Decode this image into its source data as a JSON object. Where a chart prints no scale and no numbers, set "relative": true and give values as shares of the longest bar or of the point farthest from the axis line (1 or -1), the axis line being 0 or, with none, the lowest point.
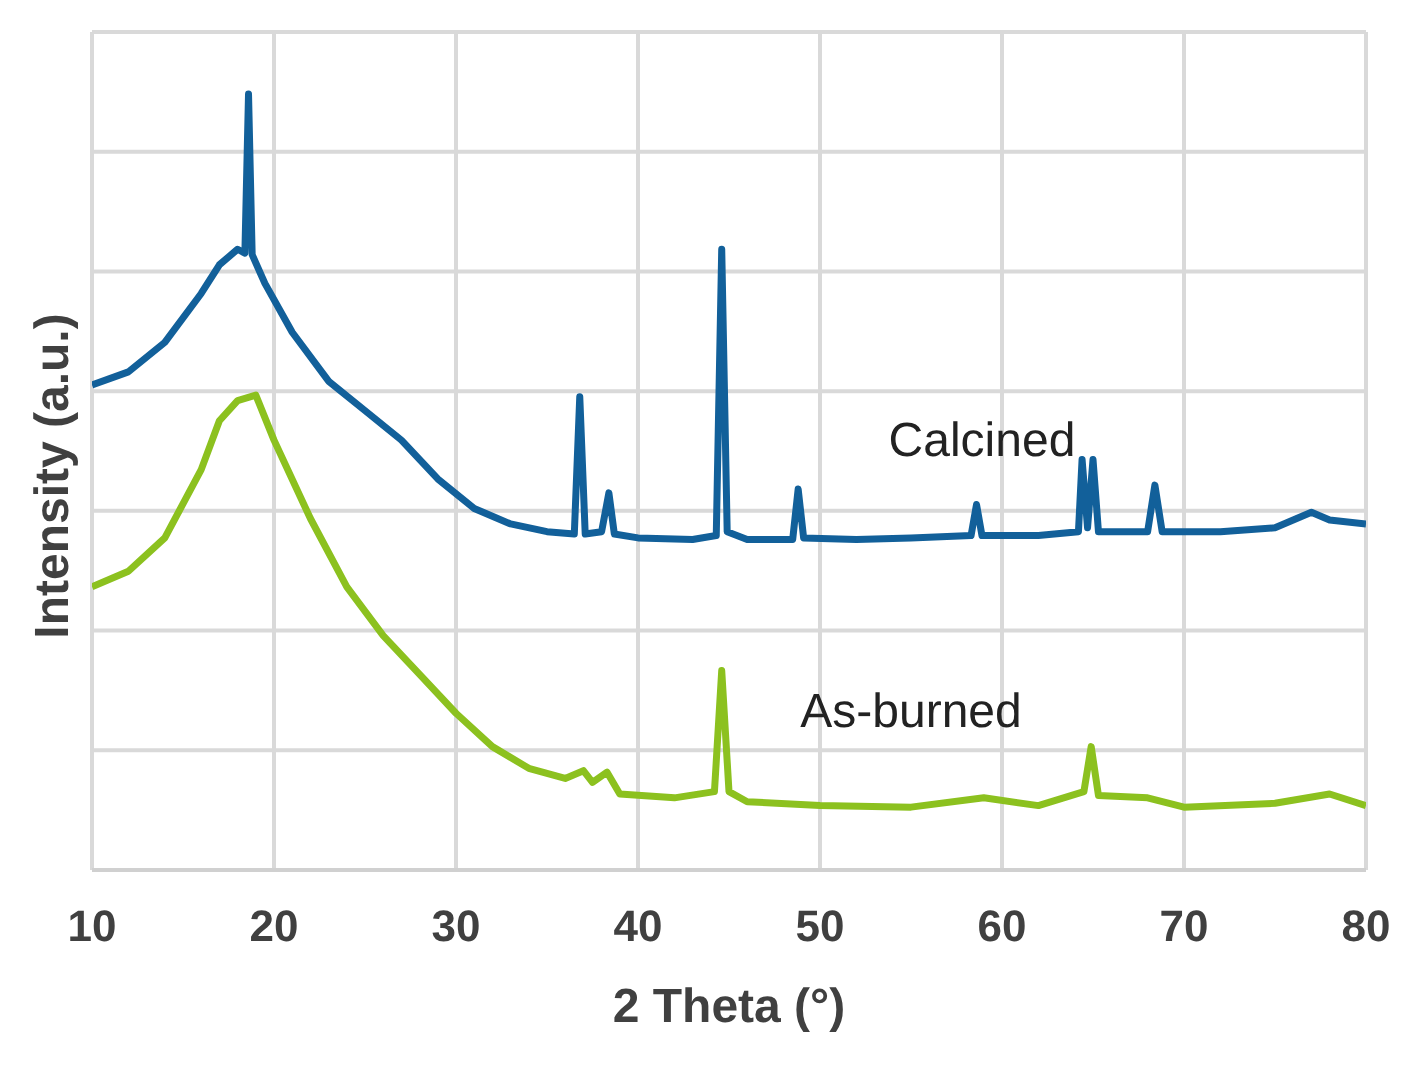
{
  "chart_data": {
    "type": "line",
    "xlabel": "2 Theta (°)",
    "ylabel": "Intensity (a.u.)",
    "xlim": [
      10,
      80
    ],
    "xticks": [
      10,
      20,
      30,
      40,
      50,
      60,
      70,
      80
    ],
    "relative": true,
    "grid": true,
    "series": [
      {
        "name": "Calcined",
        "color": "#12609a",
        "x": [
          10,
          12,
          14,
          16,
          17,
          18,
          18.4,
          18.6,
          18.8,
          19.5,
          21,
          23,
          25,
          27,
          29,
          31,
          33,
          35,
          36.5,
          36.8,
          37.1,
          38,
          38.4,
          38.7,
          40,
          43,
          44.3,
          44.6,
          44.9,
          46,
          48.5,
          48.8,
          49.1,
          52,
          55,
          58.3,
          58.6,
          58.9,
          62,
          64.2,
          64.4,
          64.7,
          65.0,
          65.3,
          68.0,
          68.4,
          68.8,
          72,
          75,
          77,
          78,
          80
        ],
        "values": [
          0.625,
          0.642,
          0.68,
          0.743,
          0.78,
          0.8,
          0.795,
          1.0,
          0.793,
          0.756,
          0.693,
          0.63,
          0.592,
          0.554,
          0.504,
          0.466,
          0.446,
          0.436,
          0.433,
          0.61,
          0.433,
          0.436,
          0.486,
          0.433,
          0.428,
          0.426,
          0.431,
          0.8,
          0.436,
          0.426,
          0.426,
          0.491,
          0.428,
          0.426,
          0.428,
          0.431,
          0.471,
          0.431,
          0.431,
          0.436,
          0.529,
          0.441,
          0.529,
          0.436,
          0.436,
          0.496,
          0.436,
          0.436,
          0.441,
          0.461,
          0.451,
          0.446
        ]
      },
      {
        "name": "As-burned",
        "color": "#8cc11f",
        "x": [
          10,
          12,
          14,
          16,
          17,
          18,
          19,
          20,
          22,
          24,
          26,
          28,
          30,
          32,
          34,
          36,
          37,
          37.5,
          38.3,
          39,
          42,
          44.2,
          44.6,
          45,
          46,
          50,
          55,
          59,
          62,
          64.5,
          64.9,
          65.3,
          68,
          70,
          75,
          78,
          80
        ],
        "values": [
          0.365,
          0.385,
          0.428,
          0.516,
          0.579,
          0.605,
          0.612,
          0.554,
          0.453,
          0.365,
          0.302,
          0.252,
          0.202,
          0.159,
          0.131,
          0.118,
          0.128,
          0.113,
          0.126,
          0.098,
          0.093,
          0.101,
          0.257,
          0.101,
          0.088,
          0.083,
          0.081,
          0.093,
          0.083,
          0.101,
          0.159,
          0.096,
          0.093,
          0.081,
          0.086,
          0.098,
          0.083
        ]
      }
    ]
  }
}
